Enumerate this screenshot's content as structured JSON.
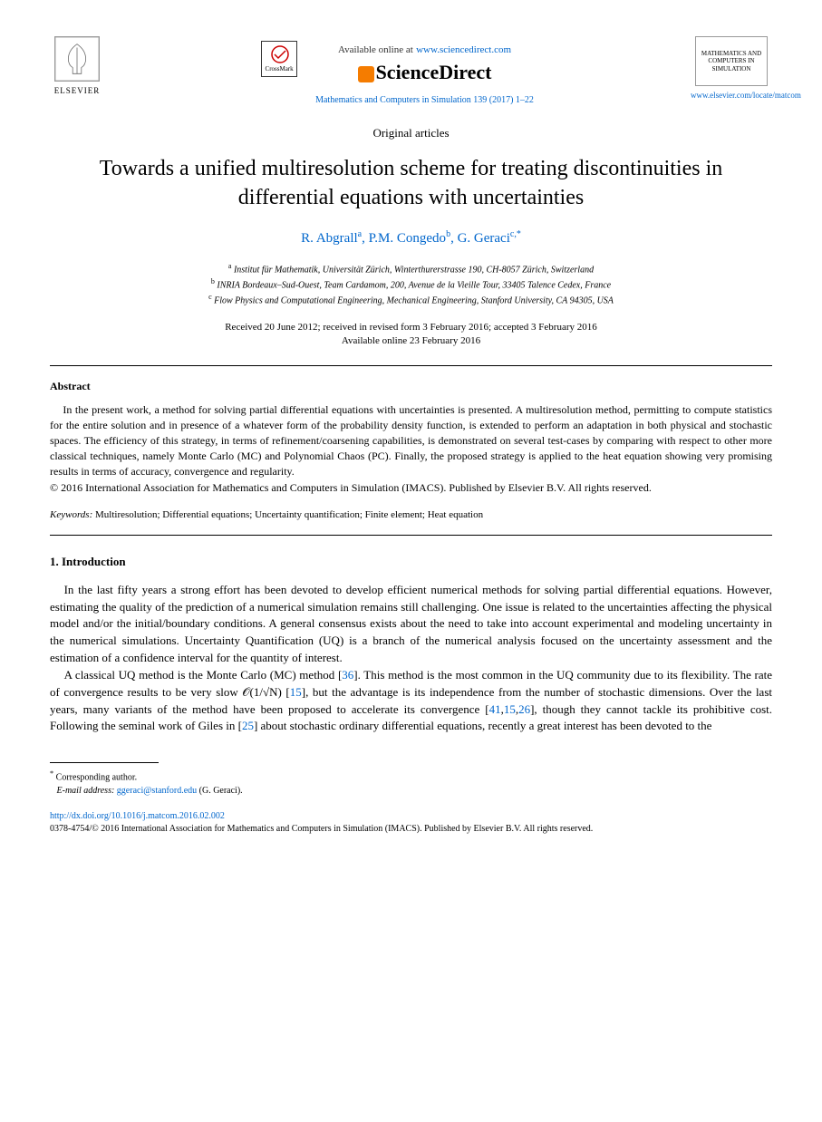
{
  "header": {
    "elsevier_label": "ELSEVIER",
    "crossmark_label": "CrossMark",
    "available_text": "Available online at",
    "sd_url": "www.sciencedirect.com",
    "sd_name": "ScienceDirect",
    "journal_ref": "Mathematics and Computers in Simulation 139 (2017) 1–22",
    "cover_title": "MATHEMATICS AND COMPUTERS IN SIMULATION",
    "locate_url": "www.elsevier.com/locate/matcom"
  },
  "article": {
    "type_label": "Original articles",
    "title": "Towards a unified multiresolution scheme for treating discontinuities in differential equations with uncertainties",
    "authors_html": "R. Abgrall<sup>a</sup>, P.M. Congedo<sup>b</sup>, G. Geraci<sup>c,*</sup>",
    "affiliations": [
      "Institut für Mathematik, Universität Zürich, Winterthurerstrasse 190, CH-8057 Zürich, Switzerland",
      "INRIA Bordeaux–Sud-Ouest, Team Cardamom, 200, Avenue de la Vieille Tour, 33405 Talence Cedex, France",
      "Flow Physics and Computational Engineering, Mechanical Engineering, Stanford University, CA 94305, USA"
    ],
    "aff_markers": [
      "a",
      "b",
      "c"
    ],
    "dates_line1": "Received 20 June 2012; received in revised form 3 February 2016; accepted 3 February 2016",
    "dates_line2": "Available online 23 February 2016"
  },
  "abstract": {
    "heading": "Abstract",
    "text": "In the present work, a method for solving partial differential equations with uncertainties is presented. A multiresolution method, permitting to compute statistics for the entire solution and in presence of a whatever form of the probability density function, is extended to perform an adaptation in both physical and stochastic spaces. The efficiency of this strategy, in terms of refinement/coarsening capabilities, is demonstrated on several test-cases by comparing with respect to other more classical techniques, namely Monte Carlo (MC) and Polynomial Chaos (PC). Finally, the proposed strategy is applied to the heat equation showing very promising results in terms of accuracy, convergence and regularity.",
    "copyright": "© 2016 International Association for Mathematics and Computers in Simulation (IMACS). Published by Elsevier B.V. All rights reserved.",
    "keywords_label": "Keywords:",
    "keywords": " Multiresolution; Differential equations; Uncertainty quantification; Finite element; Heat equation"
  },
  "section1": {
    "heading": "1.  Introduction",
    "para1_pre": "In the last fifty years a strong effort has been devoted to develop efficient numerical methods for solving partial differential equations. However, estimating the quality of the prediction of a numerical simulation remains still challenging. One issue is related to the uncertainties affecting the physical model and/or the initial/boundary conditions. A general consensus exists about the need to take into account experimental and modeling uncertainty in the numerical simulations. Uncertainty Quantification (UQ) is a branch of the numerical analysis focused on the uncertainty assessment and the estimation of a confidence interval for the quantity of interest.",
    "para2_a": "A classical UQ method is the Monte Carlo (MC) method [",
    "ref36": "36",
    "para2_b": "]. This method is the most common in the UQ community due to its flexibility. The rate of convergence results to be very slow 𝒪(1/√N) [",
    "ref15a": "15",
    "para2_c": "], but the advantage is its independence from the number of stochastic dimensions. Over the last years, many variants of the method have been proposed to accelerate its convergence [",
    "ref41": "41",
    "ref15b": "15",
    "ref26": "26",
    "para2_d": "], though they cannot tackle its prohibitive cost. Following the seminal work of Giles in [",
    "ref25": "25",
    "para2_e": "] about stochastic ordinary differential equations, recently a great interest has been devoted to the"
  },
  "footer": {
    "corr_label": "Corresponding author.",
    "email_label": "E-mail address:",
    "email": "ggeraci@stanford.edu",
    "email_name": "(G. Geraci).",
    "doi": "http://dx.doi.org/10.1016/j.matcom.2016.02.002",
    "issn_line": "0378-4754/© 2016 International Association for Mathematics and Computers in Simulation (IMACS). Published by Elsevier B.V. All rights reserved."
  },
  "colors": {
    "link": "#0066cc",
    "text": "#000000",
    "orange": "#f57c00"
  }
}
